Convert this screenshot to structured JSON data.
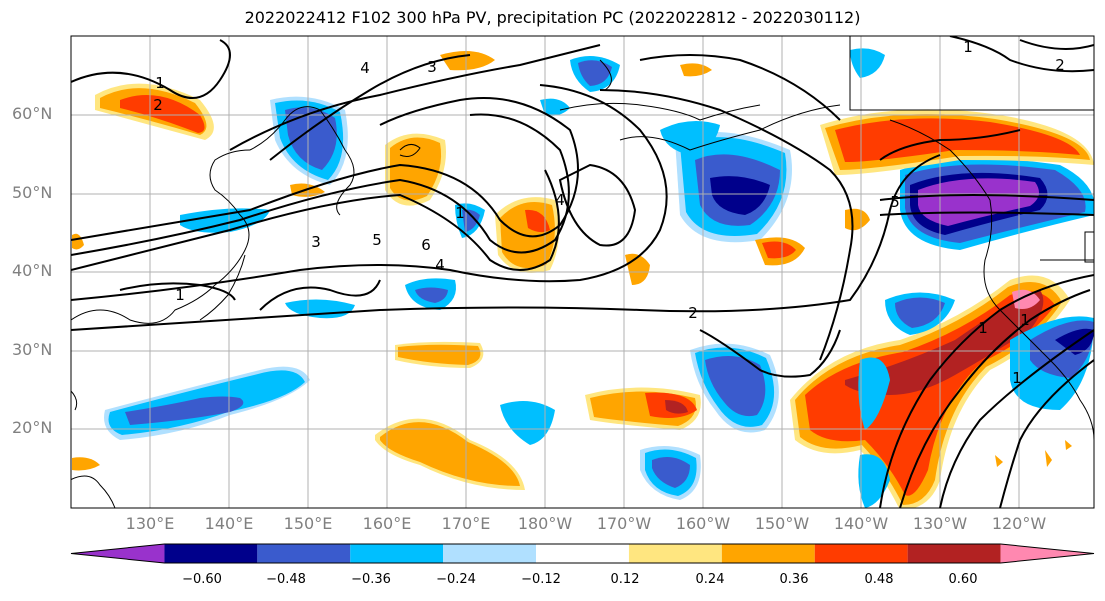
{
  "title": "2022022412 F102 300 hPa PV, precipitation PC (2022022812 - 2022030112)",
  "lat_labels": [
    "60°N",
    "50°N",
    "40°N",
    "30°N",
    "20°N"
  ],
  "lon_labels": [
    "130°E",
    "140°E",
    "150°E",
    "160°E",
    "170°E",
    "180°W",
    "170°W",
    "160°W",
    "150°W",
    "140°W",
    "130°W",
    "120°W"
  ],
  "contour_labels": [
    "1",
    "2",
    "3",
    "4",
    "5",
    "6",
    "4",
    "5",
    "3",
    "4",
    "1",
    "1",
    "2",
    "1",
    "1",
    "2",
    "1",
    "1"
  ],
  "colorbar": {
    "ticks": [
      "−0.60",
      "−0.48",
      "−0.36",
      "−0.24",
      "−0.12",
      "0.12",
      "0.24",
      "0.36",
      "0.48",
      "0.60"
    ],
    "colors": [
      "#9932CC",
      "#00008B",
      "#3A5BCD",
      "#00BFFF",
      "#B0E0FF",
      "#FFFFFF",
      "#FFE680",
      "#FFA500",
      "#FF3C00",
      "#B22222",
      "#FF88B0"
    ]
  },
  "palette": {
    "neg_strong": "#00008B",
    "neg_mid": "#3A5BCD",
    "neg_light": "#00BFFF",
    "neg_pale": "#B0E0FF",
    "pos_pale": "#FFE680",
    "pos_light": "#FFA500",
    "pos_mid": "#FF3C00",
    "pos_strong": "#B22222",
    "purple": "#9932CC",
    "pink": "#FF88B0"
  }
}
